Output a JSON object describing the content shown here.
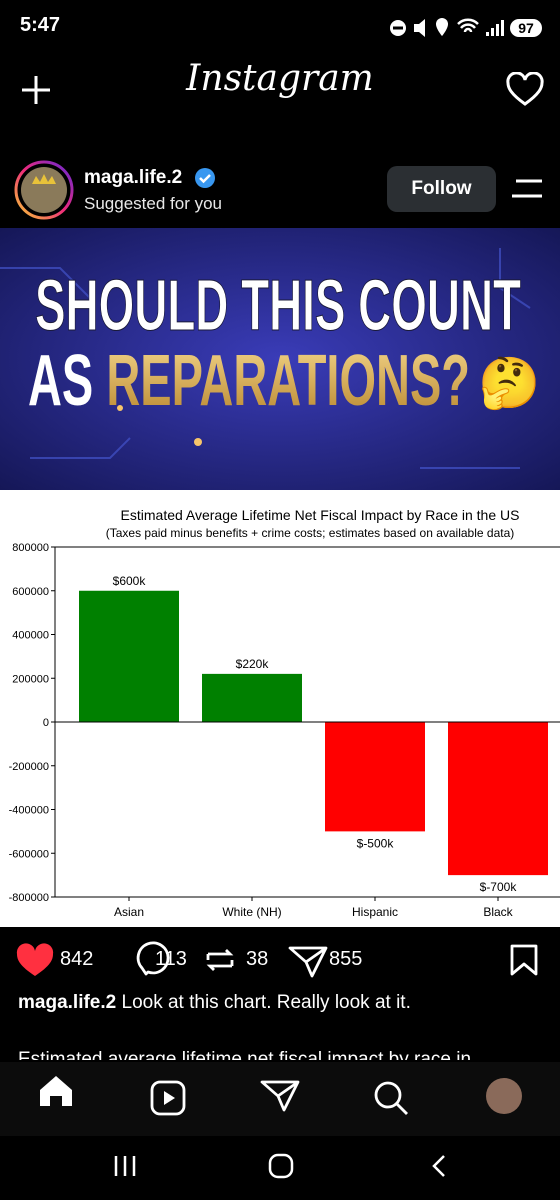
{
  "status_bar": {
    "time": "5:47",
    "battery": "97"
  },
  "header": {
    "title": "Instagram"
  },
  "post": {
    "username": "maga.life.2",
    "subtitle": "Suggested for you",
    "follow": "Follow",
    "banner": {
      "line1": "SHOULD THIS COUNT",
      "line2_prefix": "AS ",
      "line2_highlight": "REPARATIONS?",
      "emoji": "🤔"
    },
    "stats": {
      "likes": 842,
      "comments": 113,
      "reposts": 38,
      "shares": 855
    },
    "caption": {
      "username": "maga.life.2",
      "text": "Look at this chart. Really look at it."
    },
    "caption_more": "Estimated average lifetime net fiscal impact by race in"
  },
  "chart_data": {
    "type": "bar",
    "title": "Estimated Average Lifetime Net Fiscal Impact by Race in the US",
    "subtitle": "(Taxes paid minus benefits + crime costs; estimates based on available data)",
    "categories": [
      "Asian",
      "White (NH)",
      "Hispanic",
      "Black"
    ],
    "values": [
      600000,
      220000,
      -500000,
      -700000
    ],
    "value_labels": [
      "$600k",
      "$220k",
      "$-500k",
      "$-700k"
    ],
    "colors": [
      "#008000",
      "#008000",
      "#ff0000",
      "#ff0000"
    ],
    "ylim": [
      -800000,
      800000
    ],
    "yticks": [
      -800000,
      -600000,
      -400000,
      -200000,
      0,
      200000,
      400000,
      600000,
      800000
    ],
    "grid": false
  }
}
